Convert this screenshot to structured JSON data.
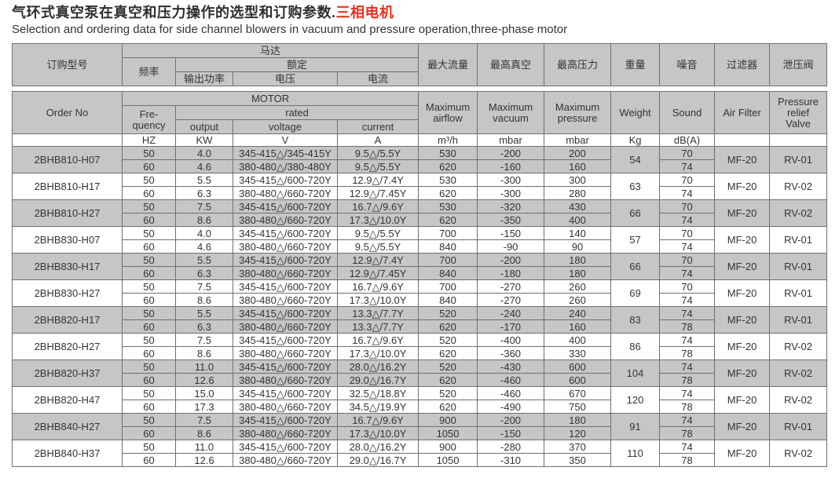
{
  "page": {
    "title_zh": "气环式真空泵在真空和压力操作的选型和订购参数.",
    "title_zh_red": "三相电机",
    "subtitle_en": "Selection and ordering data for side channel blowers in vacuum and pressure operation,three-phase motor"
  },
  "colors": {
    "header_fill": "#c6c6c6",
    "shaded_row_fill": "#c6c6c6",
    "border": "#6f6f6f",
    "text": "#333333",
    "title_red": "#e8321e"
  },
  "table": {
    "header_zh": {
      "order_no": "订购型号",
      "motor": "马达",
      "frequency": "频率",
      "rated": "额定",
      "output": "输出功率",
      "voltage": "电压",
      "current": "电流",
      "max_airflow": "最大流量",
      "max_vacuum": "最高真空",
      "max_pressure": "最高压力",
      "weight": "重量",
      "sound": "噪音",
      "air_filter": "过滤器",
      "relief_valve": "泄压阀"
    },
    "header_en": {
      "order_no": "Order No",
      "motor": "MOTOR",
      "frequency": "Fre-\nquency",
      "rated": "rated",
      "output": "output",
      "voltage": "voltage",
      "current": "current",
      "max_airflow": "Maximum\nairflow",
      "max_vacuum": "Maximum\nvacuum",
      "max_pressure": "Maximum\npressure",
      "weight": "Weight",
      "sound": "Sound",
      "air_filter": "Air Filter",
      "relief_valve": "Pressure\nrelief\nValve"
    },
    "units": {
      "order_no": "",
      "frequency": "HZ",
      "output": "KW",
      "voltage": "V",
      "current": "A",
      "airflow": "m³/h",
      "vacuum": "mbar",
      "pressure": "mbar",
      "weight": "Kg",
      "sound": "dB(A)",
      "air_filter": "",
      "relief_valve": ""
    },
    "groups": [
      {
        "order_no": "2BHB810-H07",
        "weight": "54",
        "air_filter": "MF-20",
        "relief_valve": "RV-01",
        "rows": [
          {
            "hz": "50",
            "kw": "4.0",
            "v": "345-415△/345-415Y",
            "a": "9.5△/5.5Y",
            "airflow": "530",
            "vacuum": "-200",
            "pressure": "200",
            "sound": "70"
          },
          {
            "hz": "60",
            "kw": "4.6",
            "v": "380-480△/380-480Y",
            "a": "9.5△/5.5Y",
            "airflow": "620",
            "vacuum": "-160",
            "pressure": "160",
            "sound": "74"
          }
        ]
      },
      {
        "order_no": "2BHB810-H17",
        "weight": "63",
        "air_filter": "MF-20",
        "relief_valve": "RV-02",
        "rows": [
          {
            "hz": "50",
            "kw": "5.5",
            "v": "345-415△/600-720Y",
            "a": "12.9△/7.4Y",
            "airflow": "530",
            "vacuum": "-300",
            "pressure": "300",
            "sound": "70"
          },
          {
            "hz": "60",
            "kw": "6.3",
            "v": "380-480△/660-720Y",
            "a": "12.9△/7.45Y",
            "airflow": "620",
            "vacuum": "-300",
            "pressure": "280",
            "sound": "74"
          }
        ]
      },
      {
        "order_no": "2BHB810-H27",
        "weight": "66",
        "air_filter": "MF-20",
        "relief_valve": "RV-02",
        "rows": [
          {
            "hz": "50",
            "kw": "7.5",
            "v": "345-415△/600-720Y",
            "a": "16.7△/9.6Y",
            "airflow": "530",
            "vacuum": "-320",
            "pressure": "430",
            "sound": "70"
          },
          {
            "hz": "60",
            "kw": "8.6",
            "v": "380-480△/660-720Y",
            "a": "17.3△/10.0Y",
            "airflow": "620",
            "vacuum": "-350",
            "pressure": "400",
            "sound": "74"
          }
        ]
      },
      {
        "order_no": "2BHB830-H07",
        "weight": "57",
        "air_filter": "MF-20",
        "relief_valve": "RV-01",
        "rows": [
          {
            "hz": "50",
            "kw": "4.0",
            "v": "345-415△/600-720Y",
            "a": "9.5△/5.5Y",
            "airflow": "700",
            "vacuum": "-150",
            "pressure": "140",
            "sound": "70"
          },
          {
            "hz": "60",
            "kw": "4.6",
            "v": "380-480△/660-720Y",
            "a": "9.5△/5.5Y",
            "airflow": "840",
            "vacuum": "-90",
            "pressure": "90",
            "sound": "74"
          }
        ]
      },
      {
        "order_no": "2BHB830-H17",
        "weight": "66",
        "air_filter": "MF-20",
        "relief_valve": "RV-01",
        "rows": [
          {
            "hz": "50",
            "kw": "5.5",
            "v": "345-415△/600-720Y",
            "a": "12.9△/7.4Y",
            "airflow": "700",
            "vacuum": "-200",
            "pressure": "180",
            "sound": "70"
          },
          {
            "hz": "60",
            "kw": "6.3",
            "v": "380-480△/660-720Y",
            "a": "12.9△/7.45Y",
            "airflow": "840",
            "vacuum": "-180",
            "pressure": "180",
            "sound": "74"
          }
        ]
      },
      {
        "order_no": "2BHB830-H27",
        "weight": "69",
        "air_filter": "MF-20",
        "relief_valve": "RV-01",
        "rows": [
          {
            "hz": "50",
            "kw": "7.5",
            "v": "345-415△/600-720Y",
            "a": "16.7△/9.6Y",
            "airflow": "700",
            "vacuum": "-270",
            "pressure": "260",
            "sound": "70"
          },
          {
            "hz": "60",
            "kw": "8.6",
            "v": "380-480△/660-720Y",
            "a": "17.3△/10.0Y",
            "airflow": "840",
            "vacuum": "-270",
            "pressure": "260",
            "sound": "74"
          }
        ]
      },
      {
        "order_no": "2BHB820-H17",
        "weight": "83",
        "air_filter": "MF-20",
        "relief_valve": "RV-01",
        "rows": [
          {
            "hz": "50",
            "kw": "5.5",
            "v": "345-415△/600-720Y",
            "a": "13.3△/7.7Y",
            "airflow": "520",
            "vacuum": "-240",
            "pressure": "240",
            "sound": "74"
          },
          {
            "hz": "60",
            "kw": "6.3",
            "v": "380-480△/660-720Y",
            "a": "13.3△/7.7Y",
            "airflow": "620",
            "vacuum": "-170",
            "pressure": "160",
            "sound": "78"
          }
        ]
      },
      {
        "order_no": "2BHB820-H27",
        "weight": "86",
        "air_filter": "MF-20",
        "relief_valve": "RV-02",
        "rows": [
          {
            "hz": "50",
            "kw": "7.5",
            "v": "345-415△/600-720Y",
            "a": "16.7△/9.6Y",
            "airflow": "520",
            "vacuum": "-400",
            "pressure": "400",
            "sound": "74"
          },
          {
            "hz": "60",
            "kw": "8.6",
            "v": "380-480△/660-720Y",
            "a": "17.3△/10.0Y",
            "airflow": "620",
            "vacuum": "-360",
            "pressure": "330",
            "sound": "78"
          }
        ]
      },
      {
        "order_no": "2BHB820-H37",
        "weight": "104",
        "air_filter": "MF-20",
        "relief_valve": "RV-02",
        "rows": [
          {
            "hz": "50",
            "kw": "11.0",
            "v": "345-415△/600-720Y",
            "a": "28.0△/16.2Y",
            "airflow": "520",
            "vacuum": "-430",
            "pressure": "600",
            "sound": "74"
          },
          {
            "hz": "60",
            "kw": "12.6",
            "v": "380-480△/660-720Y",
            "a": "29.0△/16.7Y",
            "airflow": "620",
            "vacuum": "-460",
            "pressure": "600",
            "sound": "78"
          }
        ]
      },
      {
        "order_no": "2BHB820-H47",
        "weight": "120",
        "air_filter": "MF-20",
        "relief_valve": "RV-02",
        "rows": [
          {
            "hz": "50",
            "kw": "15.0",
            "v": "345-415△/600-720Y",
            "a": "32.5△/18.8Y",
            "airflow": "520",
            "vacuum": "-460",
            "pressure": "670",
            "sound": "74"
          },
          {
            "hz": "60",
            "kw": "17.3",
            "v": "380-480△/660-720Y",
            "a": "34.5△/19.9Y",
            "airflow": "620",
            "vacuum": "-490",
            "pressure": "750",
            "sound": "78"
          }
        ]
      },
      {
        "order_no": "2BHB840-H27",
        "weight": "91",
        "air_filter": "MF-20",
        "relief_valve": "RV-01",
        "rows": [
          {
            "hz": "50",
            "kw": "7.5",
            "v": "345-415△/600-720Y",
            "a": "16.7△/9.6Y",
            "airflow": "900",
            "vacuum": "-200",
            "pressure": "180",
            "sound": "74"
          },
          {
            "hz": "60",
            "kw": "8.6",
            "v": "380-480△/660-720Y",
            "a": "17.3△/10.0Y",
            "airflow": "1050",
            "vacuum": "-150",
            "pressure": "120",
            "sound": "78"
          }
        ]
      },
      {
        "order_no": "2BHB840-H37",
        "weight": "110",
        "air_filter": "MF-20",
        "relief_valve": "RV-02",
        "rows": [
          {
            "hz": "50",
            "kw": "11.0",
            "v": "345-415△/600-720Y",
            "a": "28.0△/16.2Y",
            "airflow": "900",
            "vacuum": "-280",
            "pressure": "370",
            "sound": "74"
          },
          {
            "hz": "60",
            "kw": "12.6",
            "v": "380-480△/660-720Y",
            "a": "29.0△/16.7Y",
            "airflow": "1050",
            "vacuum": "-310",
            "pressure": "350",
            "sound": "78"
          }
        ]
      }
    ]
  }
}
